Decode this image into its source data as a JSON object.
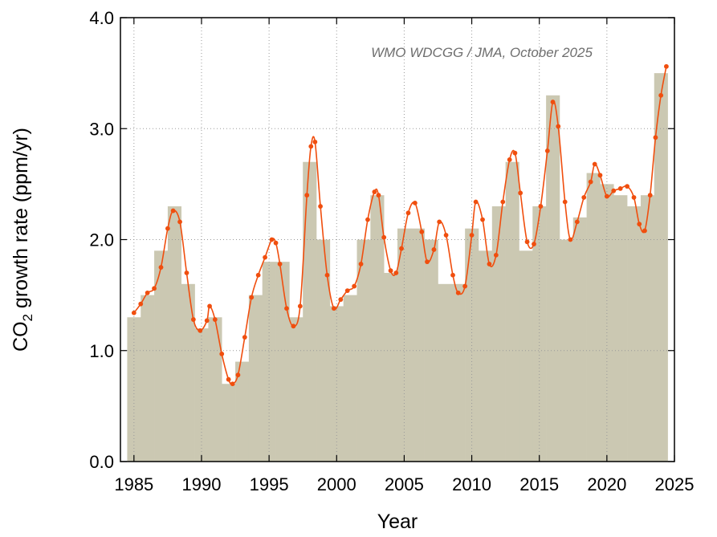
{
  "chart_data": {
    "type": "bar",
    "xlabel": "Year",
    "ylabel_prefix": "CO",
    "ylabel_sub": "2",
    "ylabel_suffix": " growth rate (ppm/yr)",
    "annotation": "WMO WDCGG / JMA, October 2025",
    "xlim": [
      1984,
      2025
    ],
    "ylim": [
      0.0,
      4.0
    ],
    "x_ticks": [
      1985,
      1990,
      1995,
      2000,
      2005,
      2010,
      2015,
      2020,
      2025
    ],
    "y_ticks": [
      "0.0",
      "1.0",
      "2.0",
      "3.0",
      "4.0"
    ],
    "grid": true,
    "colors": {
      "bars": "#cbc8b2",
      "line": "#f04e0e",
      "axes": "#000000"
    },
    "series": [
      {
        "kind": "bar",
        "years": [
          1985,
          1986,
          1987,
          1988,
          1989,
          1990,
          1991,
          1992,
          1993,
          1994,
          1995,
          1996,
          1997,
          1998,
          1999,
          2000,
          2001,
          2002,
          2003,
          2004,
          2005,
          2006,
          2007,
          2008,
          2009,
          2010,
          2011,
          2012,
          2013,
          2014,
          2015,
          2016,
          2017,
          2018,
          2019,
          2020,
          2021,
          2022,
          2023,
          2024
        ],
        "values": [
          1.3,
          1.5,
          1.9,
          2.3,
          1.6,
          1.2,
          1.3,
          0.7,
          0.9,
          1.5,
          1.8,
          1.8,
          1.3,
          2.7,
          2.0,
          1.4,
          1.5,
          2.0,
          2.4,
          1.7,
          2.1,
          2.1,
          2.0,
          1.6,
          1.6,
          2.1,
          1.9,
          2.3,
          2.7,
          1.9,
          2.3,
          3.3,
          2.0,
          2.2,
          2.6,
          2.5,
          2.4,
          2.3,
          2.4,
          3.5
        ]
      },
      {
        "kind": "line",
        "x": [
          1985.0,
          1985.5,
          1986.0,
          1986.5,
          1987.0,
          1987.5,
          1987.9,
          1988.4,
          1988.9,
          1989.4,
          1989.9,
          1990.4,
          1990.6,
          1991.0,
          1991.5,
          1992.0,
          1992.3,
          1992.7,
          1993.2,
          1993.7,
          1994.2,
          1994.7,
          1995.2,
          1995.5,
          1995.8,
          1996.3,
          1996.8,
          1997.3,
          1997.8,
          1998.1,
          1998.4,
          1998.8,
          1999.3,
          1999.8,
          2000.3,
          2000.8,
          2001.3,
          2001.8,
          2002.3,
          2002.8,
          2003.1,
          2003.5,
          2004.0,
          2004.4,
          2004.8,
          2005.3,
          2005.8,
          2006.3,
          2006.7,
          2007.2,
          2007.6,
          2008.1,
          2008.6,
          2009.0,
          2009.5,
          2010.0,
          2010.3,
          2010.8,
          2011.3,
          2011.8,
          2012.3,
          2012.8,
          2013.2,
          2013.6,
          2014.1,
          2014.6,
          2015.1,
          2015.6,
          2016.0,
          2016.4,
          2016.9,
          2017.3,
          2017.8,
          2018.3,
          2018.8,
          2019.1,
          2019.5,
          2020.0,
          2020.5,
          2021.0,
          2021.5,
          2022.0,
          2022.4,
          2022.8,
          2023.2,
          2023.6,
          2024.0,
          2024.4
        ],
        "y": [
          1.34,
          1.42,
          1.52,
          1.56,
          1.75,
          2.1,
          2.26,
          2.16,
          1.7,
          1.28,
          1.18,
          1.27,
          1.4,
          1.28,
          0.97,
          0.74,
          0.7,
          0.78,
          1.12,
          1.48,
          1.68,
          1.84,
          2.0,
          1.97,
          1.78,
          1.38,
          1.22,
          1.4,
          2.4,
          2.84,
          2.88,
          2.3,
          1.68,
          1.38,
          1.46,
          1.54,
          1.58,
          1.78,
          2.18,
          2.43,
          2.4,
          2.02,
          1.72,
          1.7,
          1.92,
          2.24,
          2.33,
          2.07,
          1.8,
          1.91,
          2.16,
          2.04,
          1.68,
          1.52,
          1.58,
          2.04,
          2.34,
          2.18,
          1.78,
          1.86,
          2.34,
          2.72,
          2.78,
          2.42,
          1.98,
          1.96,
          2.3,
          2.8,
          3.24,
          3.02,
          2.34,
          2.0,
          2.16,
          2.38,
          2.52,
          2.68,
          2.58,
          2.39,
          2.44,
          2.46,
          2.48,
          2.38,
          2.14,
          2.08,
          2.4,
          2.92,
          3.3,
          3.56
        ]
      }
    ]
  }
}
